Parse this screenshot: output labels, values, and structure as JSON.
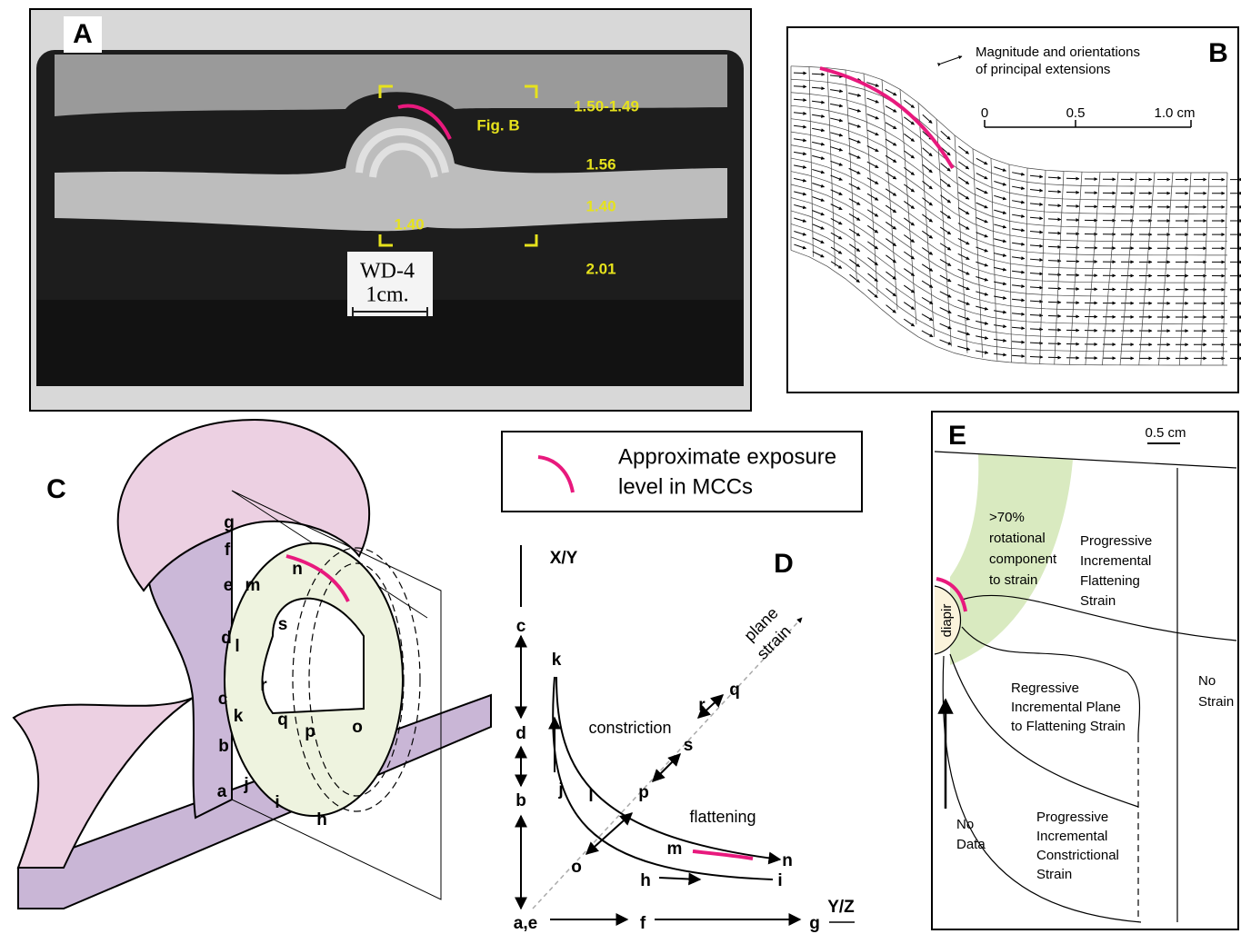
{
  "panel_a": {
    "label": "A",
    "fig_b": "Fig. B",
    "densities": [
      "1.50-1.49",
      "1.56",
      "1.40",
      "1.40",
      "2.01"
    ],
    "sample": [
      "WD-4",
      "1cm."
    ]
  },
  "panel_b": {
    "label": "B",
    "caption": [
      "Magnitude and orientations",
      "of principal extensions"
    ],
    "scale": [
      "0",
      "0.5",
      "1.0 cm"
    ]
  },
  "legend": {
    "text": [
      "Approximate exposure",
      "level in MCCs"
    ]
  },
  "panel_c": {
    "label": "C",
    "points": [
      "g",
      "f",
      "e",
      "m",
      "n",
      "d",
      "l",
      "s",
      "r",
      "c",
      "k",
      "q",
      "p",
      "o",
      "b",
      "a",
      "j",
      "i",
      "h"
    ]
  },
  "panel_d": {
    "label": "D",
    "y_axis": "X/Y",
    "x_axis": "Y/Z",
    "axis_points": [
      "c",
      "d",
      "b",
      "a,e",
      "f",
      "g"
    ],
    "points": [
      "k",
      "j",
      "l",
      "o",
      "p",
      "s",
      "r",
      "q",
      "m",
      "n",
      "h",
      "i"
    ],
    "fields": [
      "constriction",
      "flattening"
    ],
    "plane_strain": [
      "plane",
      "strain"
    ]
  },
  "panel_e": {
    "label": "E",
    "scale": "0.5 cm",
    "rotational": [
      ">70%",
      "rotational",
      "component",
      "to strain"
    ],
    "progressive_flattening": [
      "Progressive",
      "Incremental",
      "Flattening",
      "Strain"
    ],
    "regressive": [
      "Regressive",
      "Incremental Plane",
      "to Flattening Strain"
    ],
    "progressive_constrictional": [
      "Progressive",
      "Incremental",
      "Constrictional",
      "Strain"
    ],
    "no_strain": [
      "No",
      "Strain"
    ],
    "no_data": [
      "No",
      "Data"
    ],
    "diapir": "diapir"
  }
}
